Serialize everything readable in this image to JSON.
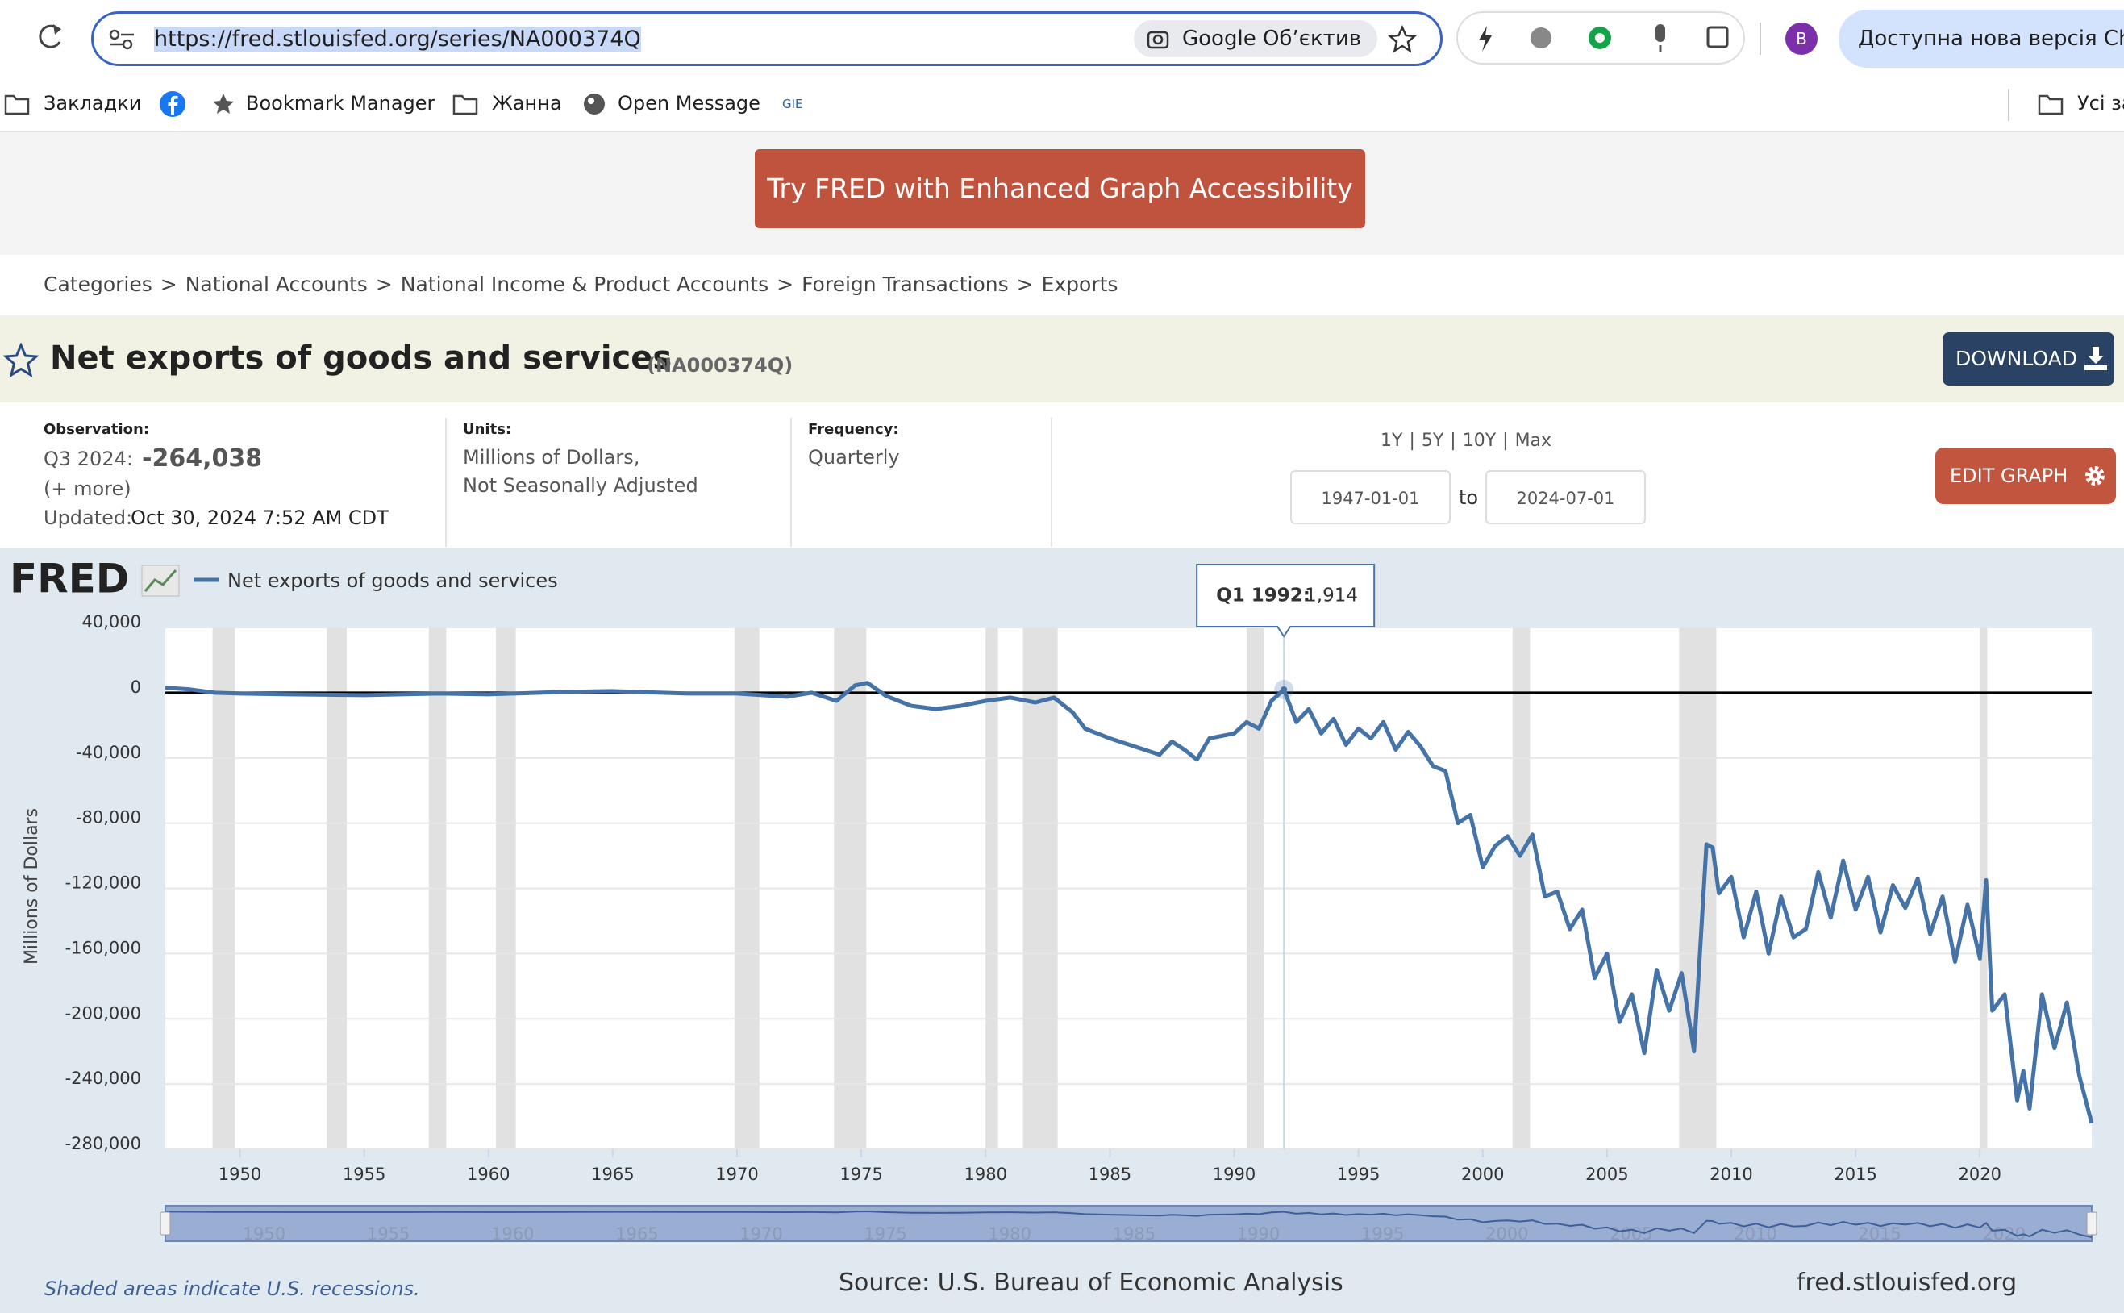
{
  "browser": {
    "url": "https://fred.stlouisfed.org/series/NA000374Q",
    "lens": "Google Об’єктив",
    "avatar": "B",
    "update": "Доступна нова версія Chr",
    "bookmarks": [
      "Закладки",
      "Bookmark Manager",
      "Жанна",
      "Open Message",
      "GIE"
    ],
    "all_bookmarks": "Усі за"
  },
  "banner": {
    "button": "Try FRED with Enhanced Graph Accessibility"
  },
  "breadcrumb": {
    "items": [
      "Categories",
      "National Accounts",
      "National Income & Product Accounts",
      "Foreign Transactions",
      "Exports"
    ],
    "separator": ">"
  },
  "header": {
    "title": "Net exports of goods and services",
    "id": "(NA000374Q)",
    "download": "DOWNLOAD"
  },
  "info": {
    "observation_label": "Observation:",
    "observation_period": "Q3 2024:",
    "observation_value": "-264,038",
    "more": "(+ more)",
    "updated_label": "Updated:",
    "updated": "Oct 30, 2024 7:52 AM CDT",
    "units_label": "Units:",
    "units_1": "Millions of Dollars,",
    "units_2": "Not Seasonally Adjusted",
    "frequency_label": "Frequency:",
    "frequency": "Quarterly"
  },
  "controls": {
    "ranges": [
      "1Y",
      "5Y",
      "10Y",
      "Max"
    ],
    "range_separator": "|",
    "start": "1947-01-01",
    "to": "to",
    "end": "2024-07-01",
    "edit": "EDIT GRAPH"
  },
  "chart_data": {
    "type": "line",
    "logo": "FRED",
    "y_label": "Millions of Dollars",
    "xlim": [
      1947,
      2024.5
    ],
    "ylim": [
      -280000,
      40000
    ],
    "xticks": [
      1950,
      1955,
      1960,
      1965,
      1970,
      1975,
      1980,
      1985,
      1990,
      1995,
      2000,
      2005,
      2010,
      2015,
      2020
    ],
    "yticks": [
      {
        "value": 40000,
        "label": "40,000"
      },
      0,
      {
        "value": -40000,
        "label": "-40,000"
      },
      {
        "value": -80000,
        "label": "-80,000"
      },
      {
        "value": -120000,
        "label": "-120,000"
      },
      {
        "value": -160000,
        "label": "-160,000"
      },
      {
        "value": -200000,
        "label": "-200,000"
      },
      {
        "value": -240000,
        "label": "-240,000"
      },
      {
        "value": -280000,
        "label": "-280,000"
      }
    ],
    "grid": true,
    "recessions": [
      [
        1948.9,
        1949.8
      ],
      [
        1953.5,
        1954.3
      ],
      [
        1957.6,
        1958.3
      ],
      [
        1960.3,
        1961.1
      ],
      [
        1969.9,
        1970.9
      ],
      [
        1973.9,
        1975.2
      ],
      [
        1980.0,
        1980.5
      ],
      [
        1981.5,
        1982.9
      ],
      [
        1990.5,
        1991.2
      ],
      [
        2001.2,
        2001.9
      ],
      [
        2007.9,
        2009.4
      ],
      [
        2020.0,
        2020.3
      ]
    ],
    "x": [
      1947,
      1948,
      1949,
      1950,
      1952,
      1955,
      1958,
      1960,
      1963,
      1965,
      1968,
      1970,
      1972,
      1973,
      1974,
      1974.75,
      1975.25,
      1976,
      1977,
      1978,
      1979,
      1980,
      1981,
      1982,
      1982.75,
      1983.5,
      1984,
      1985,
      1986,
      1987,
      1987.5,
      1988,
      1988.5,
      1989,
      1990,
      1990.5,
      1991,
      1991.5,
      1992,
      1992.5,
      1993,
      1993.5,
      1994,
      1994.5,
      1995,
      1995.5,
      1996,
      1996.5,
      1997,
      1997.5,
      1998,
      1998.5,
      1999,
      1999.5,
      2000,
      2000.5,
      2001,
      2001.5,
      2002,
      2002.5,
      2003,
      2003.5,
      2004,
      2004.5,
      2005,
      2005.5,
      2006,
      2006.5,
      2007,
      2007.5,
      2008,
      2008.5,
      2009,
      2009.25,
      2009.5,
      2010,
      2010.5,
      2011,
      2011.5,
      2012,
      2012.5,
      2013,
      2013.5,
      2014,
      2014.5,
      2015,
      2015.5,
      2016,
      2016.5,
      2017,
      2017.5,
      2018,
      2018.5,
      2019,
      2019.5,
      2020,
      2020.25,
      2020.5,
      2021,
      2021.5,
      2021.75,
      2022,
      2022.5,
      2023,
      2023.5,
      2024,
      2024.5
    ],
    "series": [
      {
        "name": "Net exports of goods and services",
        "color": "#4572a7",
        "values": [
          3000,
          2000,
          0,
          -500,
          -1000,
          -1500,
          -500,
          -1000,
          500,
          1000,
          -500,
          -500,
          -2500,
          0,
          -5000,
          4500,
          6000,
          -2000,
          -8000,
          -10000,
          -8000,
          -5000,
          -3000,
          -6000,
          -3000,
          -12000,
          -22000,
          -28000,
          -33000,
          -38000,
          -30000,
          -35000,
          -41000,
          -28000,
          -25000,
          -18000,
          -22000,
          -5000,
          1914,
          -18000,
          -10000,
          -25000,
          -16000,
          -32000,
          -22000,
          -28000,
          -18000,
          -35000,
          -24000,
          -33000,
          -45000,
          -48000,
          -80000,
          -75000,
          -107000,
          -94000,
          -88000,
          -100000,
          -87000,
          -125000,
          -122000,
          -145000,
          -133000,
          -175000,
          -160000,
          -202000,
          -185000,
          -221000,
          -170000,
          -195000,
          -172000,
          -220000,
          -93000,
          -95000,
          -123000,
          -113000,
          -150000,
          -122000,
          -160000,
          -125000,
          -150000,
          -145000,
          -110000,
          -138000,
          -103000,
          -133000,
          -113000,
          -147000,
          -118000,
          -132000,
          -114000,
          -148000,
          -125000,
          -165000,
          -130000,
          -163000,
          -115000,
          -195000,
          -185000,
          -250000,
          -232000,
          -255000,
          -185000,
          -218000,
          -190000,
          -235000,
          -264038
        ]
      }
    ],
    "tooltip": {
      "x": 1992,
      "label": "Q1 1992:",
      "value": 1914,
      "value_label": "1,914"
    }
  },
  "footer": {
    "note": "Shaded areas indicate U.S. recessions.",
    "source": "Source: U.S. Bureau of Economic Analysis",
    "site": "fred.stlouisfed.org"
  }
}
